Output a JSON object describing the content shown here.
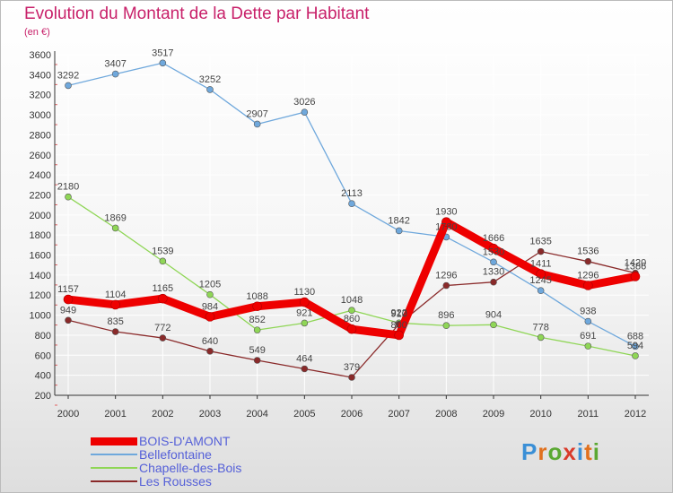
{
  "title": "Evolution du Montant de la Dette par Habitant",
  "unit": "(en €)",
  "logo_text": "Proxiti",
  "colors": {
    "axis": "#333333",
    "grid": "#ffffff",
    "title": "#c8216a",
    "legend_text": "#5560d8"
  },
  "chart_data": {
    "type": "line",
    "title": "Evolution du Montant de la Dette par Habitant",
    "subtitle": "(en €)",
    "xlabel": "",
    "ylabel": "",
    "x": [
      "2000",
      "2001",
      "2002",
      "2003",
      "2004",
      "2005",
      "2006",
      "2007",
      "2008",
      "2009",
      "2010",
      "2011",
      "2012"
    ],
    "ylim": [
      200,
      3600
    ],
    "yticks": [
      200,
      400,
      600,
      800,
      1000,
      1200,
      1400,
      1600,
      1800,
      2000,
      2200,
      2400,
      2600,
      2800,
      3000,
      3200,
      3400,
      3600
    ],
    "grid": true,
    "legend_position": "bottom-left",
    "series": [
      {
        "name": "Bellefontaine",
        "color": "#6fa8dc",
        "values": [
          3292,
          3407,
          3517,
          3252,
          2907,
          3026,
          2113,
          1842,
          1780,
          1530,
          1245,
          938,
          688
        ],
        "labels": [
          "3292",
          "3407",
          "3517",
          "3252",
          "2907",
          "3026",
          "2113",
          "1842",
          "1780",
          "1530",
          "1245",
          "938",
          "688"
        ]
      },
      {
        "name": "Chapelle-des-Bois",
        "color": "#8fd656",
        "values": [
          2180,
          1869,
          1539,
          1205,
          852,
          921,
          1048,
          922,
          896,
          904,
          778,
          691,
          594
        ],
        "labels": [
          "2180",
          "1869",
          "1539",
          "1205",
          "852",
          "921",
          "1048",
          "922",
          "896",
          "904",
          "778",
          "691",
          "594"
        ]
      },
      {
        "name": "Les Rousses",
        "color": "#8a2a2a",
        "values": [
          949,
          835,
          772,
          640,
          549,
          464,
          379,
          910,
          1296,
          1330,
          1635,
          1536,
          1420
        ],
        "labels": [
          "949",
          "835",
          "772",
          "640",
          "549",
          "464",
          "379",
          "910",
          "1296",
          "1330",
          "1635",
          "1536",
          "1420"
        ]
      },
      {
        "name": "BOIS-D'AMONT",
        "color": "#ee0000",
        "values": [
          1157,
          1104,
          1165,
          984,
          1088,
          1130,
          860,
          800,
          1930,
          1666,
          1411,
          1296,
          1386
        ],
        "labels": [
          "1157",
          "1104",
          "1165",
          "984",
          "1088",
          "1130",
          "860",
          "800",
          "1930",
          "1666",
          "1411",
          "1296",
          "1386"
        ]
      }
    ]
  },
  "legend": [
    {
      "name": "BOIS-D'AMONT",
      "color": "#ee0000",
      "thickness": "thick"
    },
    {
      "name": "Bellefontaine",
      "color": "#6fa8dc",
      "thickness": "thin"
    },
    {
      "name": "Chapelle-des-Bois",
      "color": "#8fd656",
      "thickness": "thin"
    },
    {
      "name": "Les Rousses",
      "color": "#8a2a2a",
      "thickness": "thin"
    }
  ]
}
